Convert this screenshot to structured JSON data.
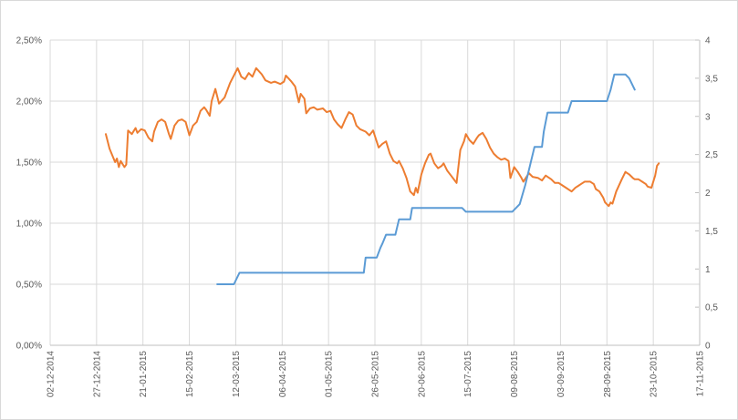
{
  "chart_data": {
    "type": "line",
    "title": "",
    "legend": "none",
    "grid": true,
    "x_axis": {
      "labels": [
        "02-12-2014",
        "27-12-2014",
        "21-01-2015",
        "15-02-2015",
        "12-03-2015",
        "06-04-2015",
        "01-05-2015",
        "26-05-2015",
        "20-06-2015",
        "15-07-2015",
        "09-08-2015",
        "03-09-2015",
        "28-09-2015",
        "23-10-2015",
        "17-11-2015"
      ],
      "tick_interval_days": 25,
      "range_days": [
        0,
        350
      ]
    },
    "y_axis_left": {
      "labels": [
        "0,00%",
        "0,50%",
        "1,00%",
        "1,50%",
        "2,00%",
        "2,50%"
      ],
      "min": 0,
      "max": 2.5
    },
    "y_axis_right": {
      "labels": [
        "0",
        "0,5",
        "1",
        "1,5",
        "2",
        "2,5",
        "3",
        "3,5",
        "4"
      ],
      "min": 0,
      "max": 4
    },
    "series": [
      {
        "name": "orange-line",
        "axis": "left",
        "color": "#ED7D31",
        "points": [
          [
            30,
            1.73
          ],
          [
            32,
            1.61
          ],
          [
            35,
            1.5
          ],
          [
            36,
            1.53
          ],
          [
            37,
            1.46
          ],
          [
            38,
            1.51
          ],
          [
            40,
            1.46
          ],
          [
            41,
            1.48
          ],
          [
            42,
            1.76
          ],
          [
            44,
            1.73
          ],
          [
            46,
            1.78
          ],
          [
            47,
            1.74
          ],
          [
            49,
            1.77
          ],
          [
            51,
            1.76
          ],
          [
            53,
            1.7
          ],
          [
            55,
            1.67
          ],
          [
            56,
            1.75
          ],
          [
            58,
            1.83
          ],
          [
            60,
            1.85
          ],
          [
            62,
            1.83
          ],
          [
            64,
            1.73
          ],
          [
            65,
            1.69
          ],
          [
            67,
            1.8
          ],
          [
            69,
            1.84
          ],
          [
            71,
            1.85
          ],
          [
            73,
            1.83
          ],
          [
            75,
            1.72
          ],
          [
            77,
            1.8
          ],
          [
            79,
            1.83
          ],
          [
            81,
            1.92
          ],
          [
            83,
            1.95
          ],
          [
            84,
            1.93
          ],
          [
            86,
            1.88
          ],
          [
            87,
            2.0
          ],
          [
            89,
            2.1
          ],
          [
            91,
            1.98
          ],
          [
            94,
            2.03
          ],
          [
            97,
            2.15
          ],
          [
            101,
            2.27
          ],
          [
            103,
            2.2
          ],
          [
            105,
            2.18
          ],
          [
            107,
            2.23
          ],
          [
            109,
            2.2
          ],
          [
            111,
            2.27
          ],
          [
            114,
            2.22
          ],
          [
            116,
            2.17
          ],
          [
            119,
            2.15
          ],
          [
            121,
            2.16
          ],
          [
            124,
            2.14
          ],
          [
            126,
            2.16
          ],
          [
            127,
            2.21
          ],
          [
            130,
            2.16
          ],
          [
            132,
            2.12
          ],
          [
            134,
            1.99
          ],
          [
            135,
            2.06
          ],
          [
            137,
            2.02
          ],
          [
            138,
            1.9
          ],
          [
            140,
            1.94
          ],
          [
            142,
            1.95
          ],
          [
            144,
            1.93
          ],
          [
            147,
            1.94
          ],
          [
            149,
            1.91
          ],
          [
            151,
            1.92
          ],
          [
            153,
            1.85
          ],
          [
            155,
            1.81
          ],
          [
            157,
            1.78
          ],
          [
            159,
            1.85
          ],
          [
            161,
            1.91
          ],
          [
            163,
            1.89
          ],
          [
            165,
            1.8
          ],
          [
            167,
            1.77
          ],
          [
            170,
            1.75
          ],
          [
            172,
            1.72
          ],
          [
            174,
            1.76
          ],
          [
            177,
            1.62
          ],
          [
            179,
            1.65
          ],
          [
            181,
            1.67
          ],
          [
            183,
            1.57
          ],
          [
            185,
            1.51
          ],
          [
            187,
            1.49
          ],
          [
            188,
            1.51
          ],
          [
            190,
            1.45
          ],
          [
            192,
            1.37
          ],
          [
            194,
            1.26
          ],
          [
            196,
            1.23
          ],
          [
            197,
            1.29
          ],
          [
            198,
            1.25
          ],
          [
            200,
            1.4
          ],
          [
            202,
            1.49
          ],
          [
            204,
            1.56
          ],
          [
            205,
            1.57
          ],
          [
            207,
            1.49
          ],
          [
            209,
            1.45
          ],
          [
            211,
            1.47
          ],
          [
            212,
            1.49
          ],
          [
            214,
            1.43
          ],
          [
            216,
            1.39
          ],
          [
            218,
            1.35
          ],
          [
            219,
            1.33
          ],
          [
            221,
            1.6
          ],
          [
            223,
            1.67
          ],
          [
            224,
            1.73
          ],
          [
            226,
            1.68
          ],
          [
            228,
            1.65
          ],
          [
            230,
            1.7
          ],
          [
            231,
            1.72
          ],
          [
            233,
            1.74
          ],
          [
            235,
            1.69
          ],
          [
            237,
            1.62
          ],
          [
            239,
            1.57
          ],
          [
            241,
            1.54
          ],
          [
            243,
            1.52
          ],
          [
            245,
            1.53
          ],
          [
            247,
            1.51
          ],
          [
            248,
            1.37
          ],
          [
            250,
            1.46
          ],
          [
            252,
            1.42
          ],
          [
            254,
            1.37
          ],
          [
            255,
            1.34
          ],
          [
            258,
            1.41
          ],
          [
            260,
            1.38
          ],
          [
            263,
            1.37
          ],
          [
            265,
            1.35
          ],
          [
            267,
            1.39
          ],
          [
            270,
            1.36
          ],
          [
            272,
            1.33
          ],
          [
            274,
            1.33
          ],
          [
            276,
            1.31
          ],
          [
            278,
            1.29
          ],
          [
            281,
            1.26
          ],
          [
            283,
            1.29
          ],
          [
            286,
            1.32
          ],
          [
            288,
            1.34
          ],
          [
            291,
            1.34
          ],
          [
            293,
            1.32
          ],
          [
            294,
            1.28
          ],
          [
            296,
            1.26
          ],
          [
            298,
            1.21
          ],
          [
            299,
            1.17
          ],
          [
            301,
            1.14
          ],
          [
            302,
            1.17
          ],
          [
            303,
            1.16
          ],
          [
            305,
            1.26
          ],
          [
            308,
            1.36
          ],
          [
            310,
            1.42
          ],
          [
            312,
            1.4
          ],
          [
            314,
            1.37
          ],
          [
            315,
            1.36
          ],
          [
            317,
            1.36
          ],
          [
            319,
            1.34
          ],
          [
            321,
            1.32
          ],
          [
            322,
            1.3
          ],
          [
            324,
            1.29
          ],
          [
            326,
            1.39
          ],
          [
            327,
            1.47
          ],
          [
            328,
            1.49
          ]
        ]
      },
      {
        "name": "blue-line",
        "axis": "right",
        "color": "#5B9BD5",
        "points": [
          [
            90,
            0.8
          ],
          [
            99,
            0.8
          ],
          [
            102,
            0.95
          ],
          [
            169,
            0.95
          ],
          [
            170,
            1.15
          ],
          [
            176,
            1.15
          ],
          [
            178,
            1.28
          ],
          [
            179,
            1.33
          ],
          [
            181,
            1.45
          ],
          [
            186,
            1.45
          ],
          [
            187,
            1.55
          ],
          [
            188,
            1.65
          ],
          [
            194,
            1.65
          ],
          [
            195,
            1.8
          ],
          [
            222,
            1.8
          ],
          [
            224,
            1.75
          ],
          [
            249,
            1.75
          ],
          [
            251,
            1.8
          ],
          [
            253,
            1.85
          ],
          [
            256,
            2.1
          ],
          [
            261,
            2.6
          ],
          [
            265,
            2.6
          ],
          [
            266,
            2.8
          ],
          [
            268,
            3.05
          ],
          [
            279,
            3.05
          ],
          [
            281,
            3.2
          ],
          [
            300,
            3.2
          ],
          [
            302,
            3.35
          ],
          [
            304,
            3.55
          ],
          [
            310,
            3.55
          ],
          [
            312,
            3.5
          ],
          [
            315,
            3.35
          ]
        ]
      }
    ]
  },
  "colors": {
    "background": "#FFFFFF",
    "border": "#D9D9D9",
    "gridline": "#D9D9D9",
    "axis_line": "#BFBFBF",
    "label_text": "#595959"
  }
}
